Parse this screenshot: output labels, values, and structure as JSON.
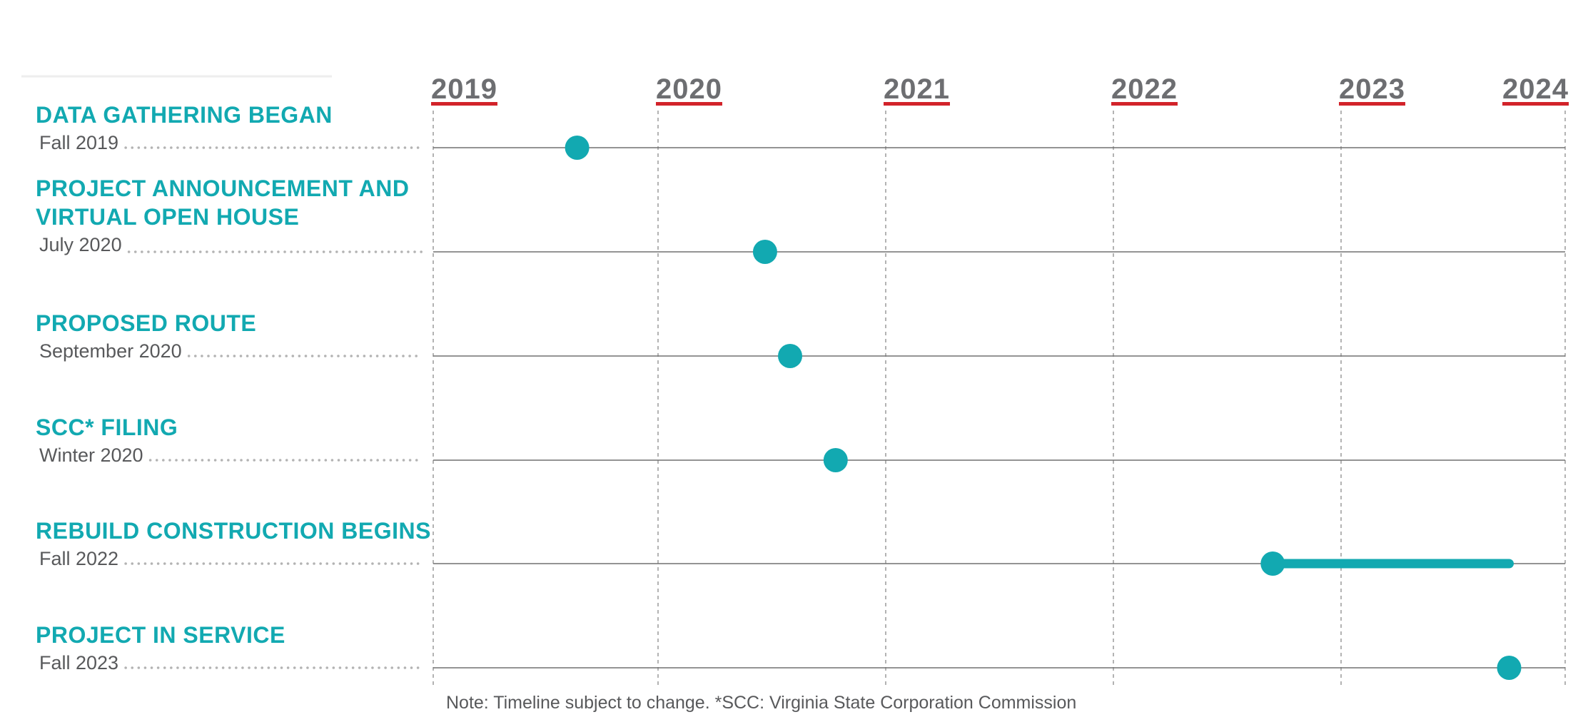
{
  "chart_data": {
    "type": "timeline",
    "years": [
      "2019",
      "2020",
      "2021",
      "2022",
      "2023",
      "2024"
    ],
    "milestones": [
      {
        "title_lines": [
          "DATA GATHERING BEGAN"
        ],
        "date_label": "Fall 2019",
        "start": 2019.64
      },
      {
        "title_lines": [
          "PROJECT ANNOUNCEMENT AND",
          "VIRTUAL OPEN HOUSE"
        ],
        "date_label": "July 2020",
        "start": 2020.47
      },
      {
        "title_lines": [
          "PROPOSED ROUTE"
        ],
        "date_label": "September 2020",
        "start": 2020.58
      },
      {
        "title_lines": [
          "SCC* FILING"
        ],
        "date_label": "Winter 2020",
        "start": 2020.78
      },
      {
        "title_lines": [
          "REBUILD CONSTRUCTION BEGINS"
        ],
        "date_label": "Fall 2022",
        "start": 2022.7,
        "end": 2023.75
      },
      {
        "title_lines": [
          "PROJECT IN SERVICE"
        ],
        "date_label": "Fall 2023",
        "start": 2023.75
      }
    ],
    "note": "Note: Timeline subject to change.  *SCC: Virginia State Corporation Commission"
  },
  "colors": {
    "accent": "#12a9b1",
    "year_underline": "#d2232a",
    "year_text": "#6d6e71",
    "text": "#58595b",
    "row_line": "#707070",
    "grid": "#9a9a9a",
    "leader_dots": "#b3b3b3"
  }
}
